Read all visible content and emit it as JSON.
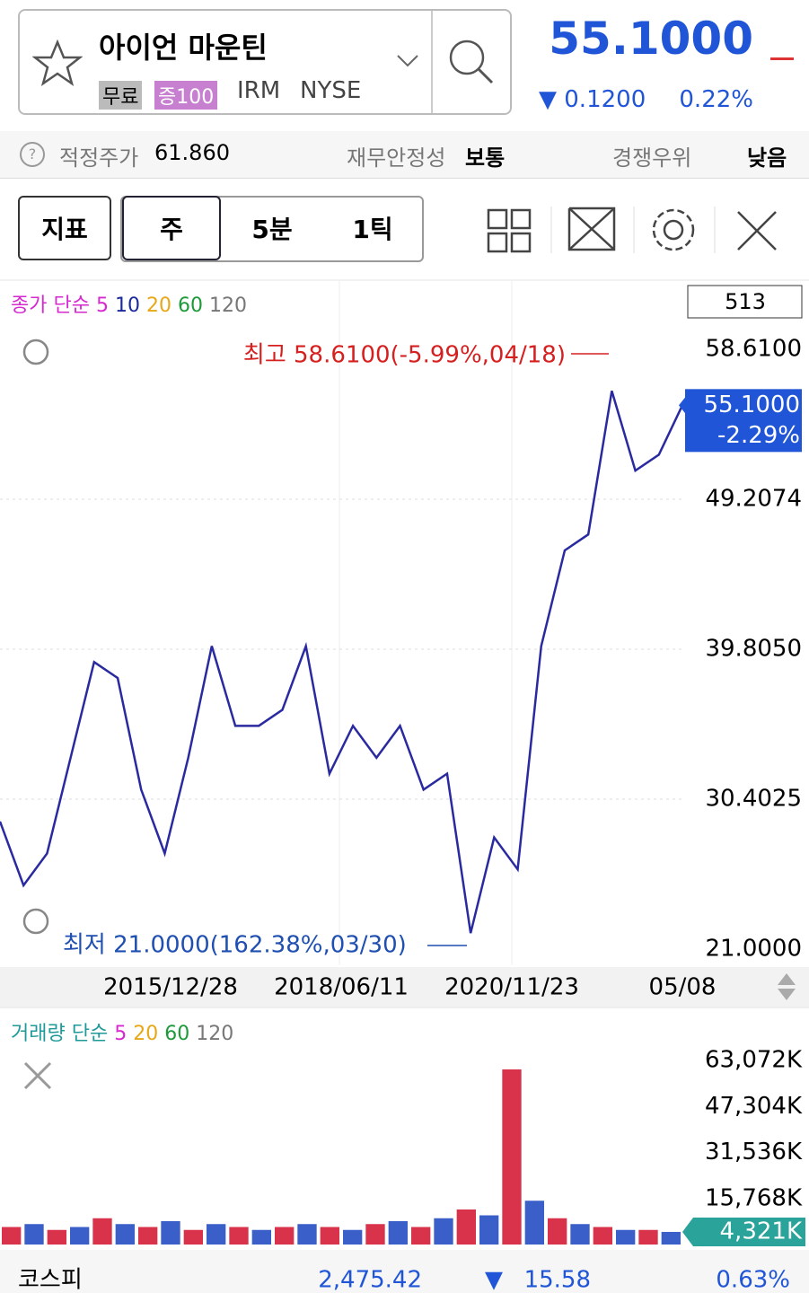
{
  "header": {
    "name": "아이언 마운틴",
    "badges": [
      "무료",
      "증100"
    ],
    "ticker": "IRM",
    "exchange": "NYSE",
    "price": "55.1000",
    "change": "0.1200",
    "change_pct": "0.22%"
  },
  "info": {
    "fair_label": "적정주가",
    "fair_value": "61.860",
    "stability_label": "재무안정성",
    "stability_value": "보통",
    "competitive_label": "경쟁우위",
    "competitive_value": "낮음"
  },
  "toolbar": {
    "buttons": [
      "지표",
      "주",
      "5분",
      "1틱"
    ]
  },
  "price_chart": {
    "type": "line",
    "legend_title": "종가 단순",
    "averages": [
      {
        "name": "5",
        "color": "#d62ad0"
      },
      {
        "name": "10",
        "color": "#1a2a9a"
      },
      {
        "name": "20",
        "color": "#e6a817"
      },
      {
        "name": "60",
        "color": "#1e9a3a"
      },
      {
        "name": "120",
        "color": "#777777"
      }
    ],
    "count": "513",
    "ylim": [
      21,
      58.61
    ],
    "yticks": [
      {
        "value": 58.61,
        "label": "58.6100"
      },
      {
        "value": 49.2074,
        "label": "49.2074"
      },
      {
        "value": 39.805,
        "label": "39.8050"
      },
      {
        "value": 30.4025,
        "label": "30.4025"
      },
      {
        "value": 21,
        "label": "21.0000"
      }
    ],
    "high_note": "최고 58.6100(-5.99%,04/18)",
    "low_note": "최저 21.0000(162.38%,03/30)",
    "current": {
      "value": 55.1,
      "label": "55.1000",
      "change": "-2.29%"
    },
    "x_labels": [
      "2015/12/28",
      "2018/06/11",
      "2020/11/23",
      "05/08"
    ],
    "color": "#2a2aa0",
    "closes": [
      29,
      25,
      27,
      33,
      39,
      38,
      31,
      27,
      33,
      40,
      35,
      35,
      36,
      40,
      32,
      35,
      33,
      35,
      31,
      32,
      22,
      28,
      26,
      40,
      46,
      47,
      56,
      51,
      52,
      55.1
    ]
  },
  "volume_chart": {
    "type": "bar",
    "legend_title": "거래량 단순",
    "averages": [
      {
        "name": "5",
        "color": "#d62ad0"
      },
      {
        "name": "20",
        "color": "#e6a817"
      },
      {
        "name": "60",
        "color": "#1e9a3a"
      },
      {
        "name": "120",
        "color": "#777777"
      }
    ],
    "ylim": [
      0,
      63072
    ],
    "yticks": [
      {
        "value": 63072,
        "label": "63,072K"
      },
      {
        "value": 47304,
        "label": "47,304K"
      },
      {
        "value": 31536,
        "label": "31,536K"
      },
      {
        "value": 15768,
        "label": "15,768K"
      }
    ],
    "current": {
      "value": 4321,
      "label": "4,321K"
    },
    "color": "#d9334b",
    "values": [
      6000,
      7000,
      5000,
      6000,
      9000,
      7000,
      6000,
      8000,
      5000,
      7000,
      6000,
      5000,
      6000,
      7000,
      6000,
      5000,
      7000,
      8000,
      6000,
      9000,
      12000,
      10000,
      60000,
      15000,
      9000,
      7000,
      6000,
      5000,
      5000,
      4321
    ]
  },
  "market": {
    "name": "코스피",
    "value": "2,475.42",
    "change": "15.58",
    "change_pct": "0.63%"
  }
}
